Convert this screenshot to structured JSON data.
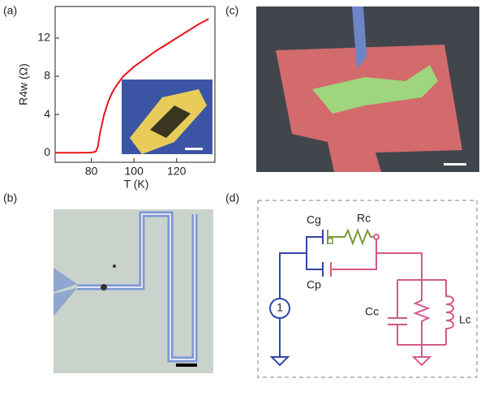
{
  "panels": {
    "a": "(a)",
    "b": "(b)",
    "c": "(c)",
    "d": "(d)"
  },
  "chart_data": {
    "type": "line",
    "x_label": "T (K)",
    "y_label": "R4w (Ω)",
    "x": [
      63,
      70,
      75,
      80,
      82,
      83,
      84,
      85,
      86,
      88,
      90,
      92,
      95,
      100,
      105,
      110,
      115,
      120,
      125,
      130,
      135
    ],
    "series": [
      {
        "color": "#e8141a",
        "values": [
          0,
          0,
          0,
          0.02,
          0.1,
          0.6,
          2,
          3,
          4,
          5.4,
          6.4,
          7.1,
          8,
          9,
          9.8,
          10.6,
          11.3,
          12,
          12.7,
          13.4,
          14
        ]
      }
    ],
    "xlim": [
      63,
      138
    ],
    "ylim": [
      -1,
      15.3
    ],
    "xticks": [
      80,
      100,
      120
    ],
    "yticks": [
      0,
      4,
      8,
      12
    ]
  },
  "circuit": {
    "source": "1",
    "cg": "Cg",
    "rc": "Rc",
    "cp": "Cp",
    "cc": "Cc",
    "lc": "Lc"
  }
}
